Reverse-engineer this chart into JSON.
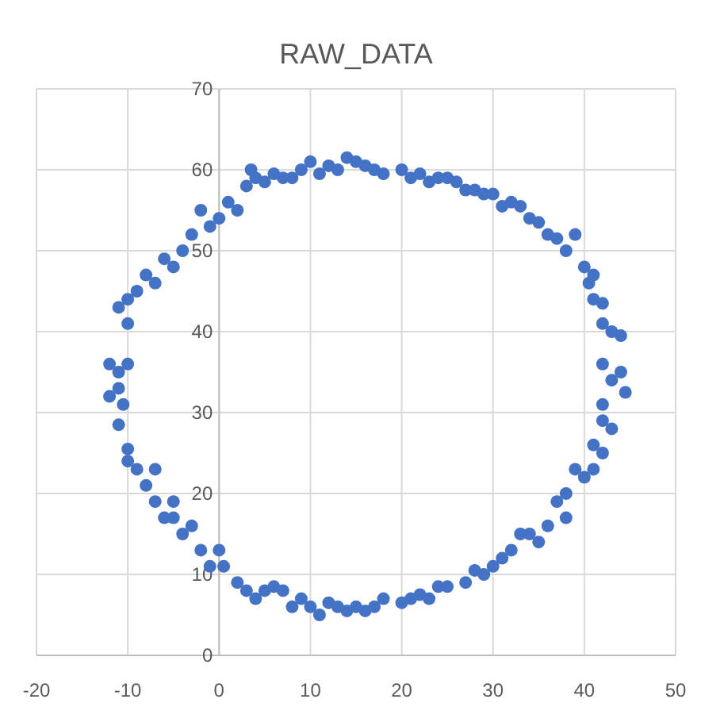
{
  "chart_data": {
    "type": "scatter",
    "title": "RAW_DATA",
    "xlim": [
      -20,
      50
    ],
    "xticks": [
      -20,
      -10,
      0,
      10,
      20,
      30,
      40,
      50
    ],
    "ylim": [
      0,
      70
    ],
    "yticks": [
      0,
      10,
      20,
      30,
      40,
      50,
      60,
      70
    ],
    "grid": true,
    "marker": "circle",
    "series": [
      {
        "color": "#4472c4",
        "x": [
          3,
          3.5,
          4,
          5,
          6,
          7,
          8,
          9,
          10,
          11,
          12,
          13,
          14,
          15,
          16,
          17,
          18,
          20,
          21,
          22,
          23,
          24,
          25,
          26,
          27,
          28,
          29,
          30,
          31,
          32,
          33,
          34,
          35,
          36,
          37,
          38,
          39,
          40,
          40.5,
          41,
          41,
          42,
          42,
          43,
          44,
          42,
          43,
          44,
          44.5,
          42,
          42,
          43,
          41,
          42,
          41,
          40,
          39,
          38,
          37,
          38,
          36,
          35,
          34,
          33,
          32,
          31,
          30,
          29,
          28,
          27,
          25,
          24,
          23,
          22,
          21,
          20,
          18,
          17,
          16,
          15,
          14,
          13,
          12,
          11,
          10,
          9,
          8,
          7,
          6,
          5,
          4,
          3,
          2,
          0.5,
          0,
          -1,
          -2,
          -3,
          -4,
          -5,
          -5,
          -6,
          -7,
          -8,
          -7,
          -9,
          -10,
          -10,
          -11,
          -12,
          -11,
          -10.5,
          -11,
          -12,
          -10,
          -10,
          -11,
          -10,
          -9,
          -8,
          -7,
          -6,
          -5,
          -4,
          -3,
          -2,
          -1,
          1,
          2,
          0
        ],
        "values": [
          58,
          60,
          59,
          58.5,
          59.5,
          59,
          59,
          60,
          61,
          59.5,
          60.5,
          60,
          61.5,
          61,
          60.5,
          60,
          59.5,
          60,
          59,
          59.5,
          58.5,
          59,
          59,
          58.5,
          57.5,
          57.5,
          57,
          57,
          55.5,
          56,
          55.5,
          54,
          53.5,
          52,
          51.5,
          50,
          52,
          48,
          46,
          47,
          44,
          43.5,
          41,
          40,
          39.5,
          36,
          34,
          35,
          32.5,
          31,
          29,
          28,
          26,
          25,
          23,
          22,
          23,
          20,
          19,
          17,
          16,
          14,
          15,
          15,
          13,
          12,
          11,
          10,
          10.5,
          9,
          8.5,
          8.5,
          7,
          7.5,
          7,
          6.5,
          7,
          6,
          5.5,
          6,
          5.5,
          6,
          6.5,
          5,
          6,
          7,
          6,
          8,
          8.5,
          8,
          7,
          8,
          9,
          11,
          13,
          11,
          13,
          16,
          15,
          17,
          19,
          17,
          19,
          21,
          23,
          23,
          24,
          25.5,
          28.5,
          32,
          33,
          31,
          35,
          36,
          36,
          44,
          43,
          41,
          45,
          47,
          46,
          49,
          48,
          50,
          52,
          55,
          53,
          56,
          55,
          54
        ]
      }
    ]
  }
}
